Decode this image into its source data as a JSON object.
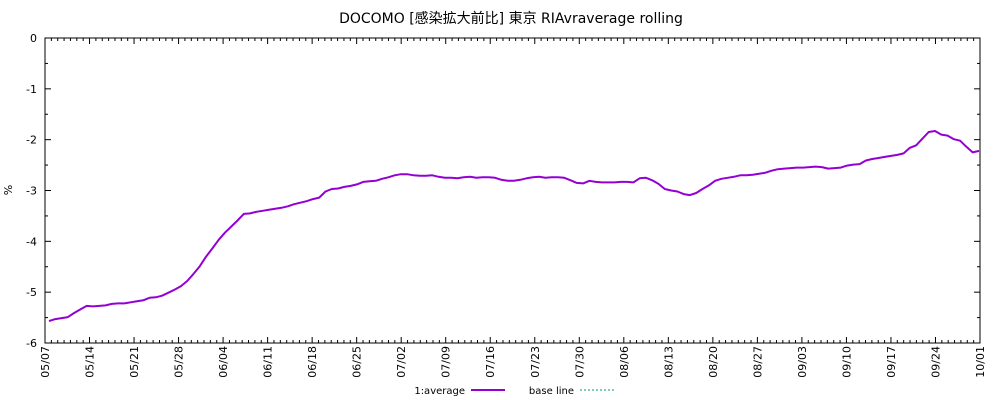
{
  "chart_data": {
    "type": "line",
    "title": "DOCOMO  [感染拡大前比] 東京 RIAvraverage rolling",
    "xlabel": "",
    "ylabel": "%",
    "ylim": [
      -6,
      0
    ],
    "yticks": [
      0,
      -1,
      -2,
      -3,
      -4,
      -5,
      -6
    ],
    "ytick_labels": [
      "0",
      "-1",
      "-2",
      "-3",
      "-4",
      "-5",
      "-6"
    ],
    "xtick_labels": [
      "05/07",
      "05/14",
      "05/21",
      "05/28",
      "06/04",
      "06/11",
      "06/18",
      "06/25",
      "07/02",
      "07/09",
      "07/16",
      "07/23",
      "07/30",
      "08/06",
      "08/13",
      "08/20",
      "08/27",
      "09/03",
      "09/10",
      "09/17",
      "09/24",
      "10/01"
    ],
    "grid": false,
    "legend_placement": "bottom-center",
    "series": [
      {
        "name": "1:average",
        "color": "#9400d3",
        "style": "solid",
        "x_start": "05/07",
        "values": [
          -5.57,
          -5.53,
          -5.51,
          -5.49,
          -5.41,
          -5.34,
          -5.27,
          -5.28,
          -5.27,
          -5.26,
          -5.23,
          -5.22,
          -5.22,
          -5.2,
          -5.18,
          -5.16,
          -5.11,
          -5.1,
          -5.07,
          -5.01,
          -4.95,
          -4.88,
          -4.78,
          -4.64,
          -4.49,
          -4.3,
          -4.14,
          -3.97,
          -3.83,
          -3.71,
          -3.59,
          -3.46,
          -3.45,
          -3.42,
          -3.4,
          -3.38,
          -3.36,
          -3.34,
          -3.31,
          -3.27,
          -3.24,
          -3.21,
          -3.17,
          -3.14,
          -3.02,
          -2.97,
          -2.96,
          -2.93,
          -2.91,
          -2.88,
          -2.83,
          -2.82,
          -2.81,
          -2.77,
          -2.74,
          -2.7,
          -2.68,
          -2.68,
          -2.7,
          -2.71,
          -2.71,
          -2.7,
          -2.73,
          -2.75,
          -2.75,
          -2.76,
          -2.74,
          -2.73,
          -2.75,
          -2.74,
          -2.74,
          -2.75,
          -2.79,
          -2.81,
          -2.81,
          -2.79,
          -2.76,
          -2.74,
          -2.73,
          -2.75,
          -2.74,
          -2.74,
          -2.75,
          -2.8,
          -2.85,
          -2.86,
          -2.81,
          -2.83,
          -2.84,
          -2.84,
          -2.84,
          -2.83,
          -2.83,
          -2.84,
          -2.76,
          -2.75,
          -2.8,
          -2.87,
          -2.97,
          -3.0,
          -3.02,
          -3.07,
          -3.09,
          -3.05,
          -2.97,
          -2.9,
          -2.81,
          -2.77,
          -2.75,
          -2.73,
          -2.7,
          -2.7,
          -2.69,
          -2.67,
          -2.65,
          -2.61,
          -2.58,
          -2.57,
          -2.56,
          -2.55,
          -2.55,
          -2.54,
          -2.53,
          -2.54,
          -2.57,
          -2.56,
          -2.55,
          -2.51,
          -2.49,
          -2.48,
          -2.41,
          -2.38,
          -2.36,
          -2.34,
          -2.32,
          -2.3,
          -2.27,
          -2.16,
          -2.11,
          -1.98,
          -1.85,
          -1.83,
          -1.9,
          -1.92,
          -1.99,
          -2.02,
          -2.14,
          -2.25,
          -2.22
        ]
      },
      {
        "name": "base line",
        "color": "#009e73",
        "style": "dashed",
        "values": []
      }
    ]
  }
}
